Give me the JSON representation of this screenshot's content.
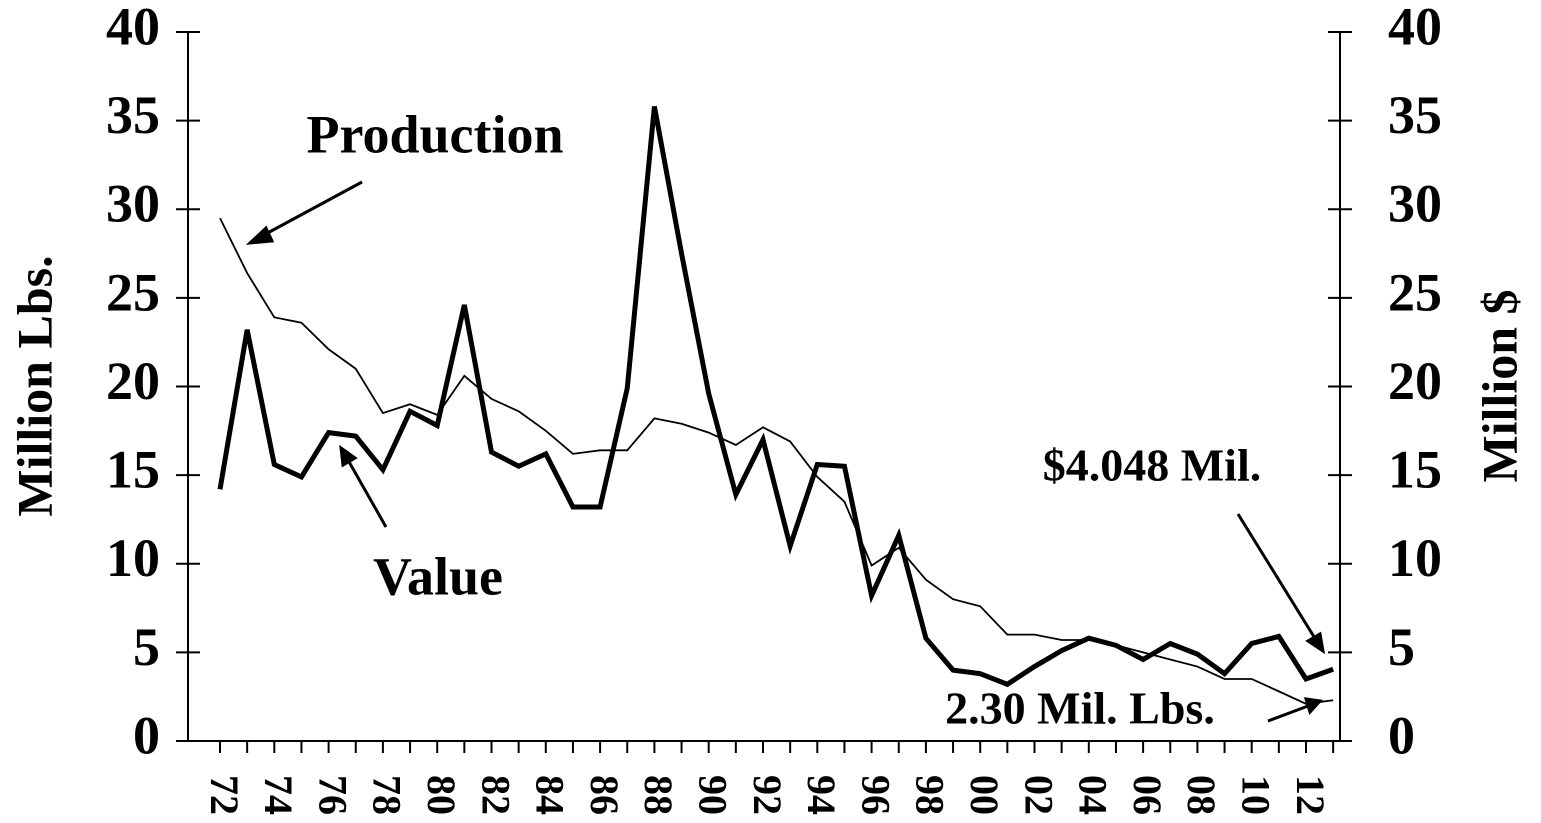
{
  "chart_data": {
    "type": "line",
    "categories": [
      "72",
      null,
      "74",
      null,
      "76",
      null,
      "78",
      null,
      "80",
      null,
      "82",
      null,
      "84",
      null,
      "86",
      null,
      "88",
      null,
      "90",
      null,
      "92",
      null,
      "94",
      null,
      "96",
      null,
      "98",
      null,
      "00",
      null,
      "02",
      null,
      "04",
      null,
      "06",
      null,
      "08",
      null,
      "10",
      null,
      "12",
      null
    ],
    "series": [
      {
        "name": "Production",
        "color": "#000000",
        "values": [
          29.5,
          26.4,
          23.9,
          23.6,
          22.1,
          21.0,
          18.5,
          19.0,
          18.4,
          20.6,
          19.3,
          18.6,
          17.5,
          16.2,
          16.4,
          16.4,
          18.2,
          17.9,
          17.4,
          16.7,
          17.7,
          16.9,
          14.9,
          13.5,
          9.9,
          10.9,
          9.1,
          8.0,
          7.6,
          6.0,
          6.0,
          5.7,
          5.7,
          5.4,
          5.0,
          4.6,
          4.2,
          3.5,
          3.5,
          2.8,
          2.1,
          2.3
        ]
      },
      {
        "name": "Value",
        "color": "#000000",
        "axis": "y2",
        "values": [
          14.2,
          23.2,
          15.6,
          14.9,
          17.4,
          17.2,
          15.3,
          18.6,
          17.8,
          24.6,
          16.3,
          15.5,
          16.2,
          13.2,
          13.2,
          19.9,
          35.8,
          27.5,
          19.6,
          13.9,
          17.0,
          11.0,
          15.6,
          15.5,
          8.2,
          11.6,
          5.8,
          4.0,
          3.8,
          3.2,
          4.2,
          5.1,
          5.8,
          5.4,
          4.6,
          5.5,
          4.9,
          3.8,
          5.5,
          5.9,
          3.5,
          4.048
        ]
      }
    ],
    "ylabel": "Million Lbs.",
    "y2label": "Million $",
    "ylim": [
      0,
      40
    ],
    "yticks": [
      0,
      5,
      10,
      15,
      20,
      25,
      30,
      35,
      40
    ],
    "y2lim": [
      0,
      40
    ],
    "y2ticks": [
      0,
      5,
      10,
      15,
      20,
      25,
      30,
      35,
      40
    ],
    "annotations": [
      "$4.048 Mil.",
      "2.30 Mil. Lbs."
    ],
    "legend": "inline"
  }
}
